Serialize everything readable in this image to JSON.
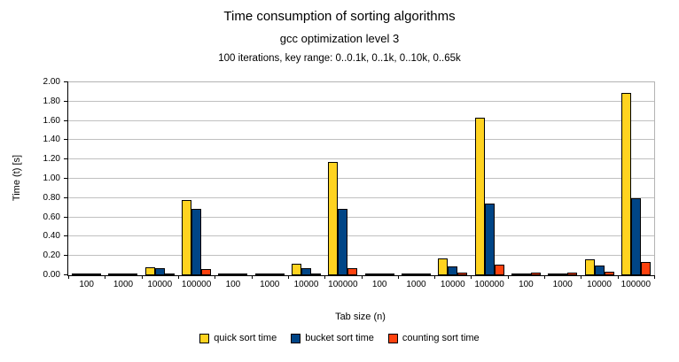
{
  "chart_data": {
    "type": "bar",
    "title": "Time consumption of sorting algorithms",
    "subtitle": "gcc optimization level 3",
    "subtitle2": "100 iterations, key range: 0..0.1k, 0..1k, 0..10k, 0..65k",
    "xlabel": "Tab size (n)",
    "ylabel": "Time (t) [s]",
    "ylim": [
      0,
      2.0
    ],
    "ytick_step": 0.2,
    "grid": true,
    "legend_position": "bottom",
    "group_key_ranges": [
      "0..0.1k",
      "0..1k",
      "0..10k",
      "0..65k"
    ],
    "categories": [
      "100",
      "1000",
      "10000",
      "100000",
      "100",
      "1000",
      "10000",
      "100000",
      "100",
      "1000",
      "10000",
      "100000",
      "100",
      "1000",
      "10000",
      "100000"
    ],
    "series": [
      {
        "name": "quick sort time",
        "color": "#FFD320",
        "values": [
          0.003,
          0.006,
          0.08,
          0.78,
          0.002,
          0.007,
          0.12,
          1.17,
          0.003,
          0.007,
          0.17,
          1.63,
          0.003,
          0.006,
          0.165,
          1.89
        ]
      },
      {
        "name": "bucket sort time",
        "color": "#004586",
        "values": [
          0.003,
          0.01,
          0.07,
          0.69,
          0.002,
          0.008,
          0.07,
          0.69,
          0.003,
          0.008,
          0.09,
          0.74,
          0.004,
          0.02,
          0.1,
          0.8
        ]
      },
      {
        "name": "counting sort time",
        "color": "#FF420E",
        "values": [
          0.002,
          0.003,
          0.005,
          0.06,
          0.002,
          0.003,
          0.01,
          0.07,
          0.005,
          0.012,
          0.025,
          0.11,
          0.024,
          0.024,
          0.033,
          0.14
        ]
      }
    ],
    "colors": {
      "gridline": "#c0c0c0",
      "plot_border": "#b3b3b3",
      "axis": "#000000"
    }
  }
}
